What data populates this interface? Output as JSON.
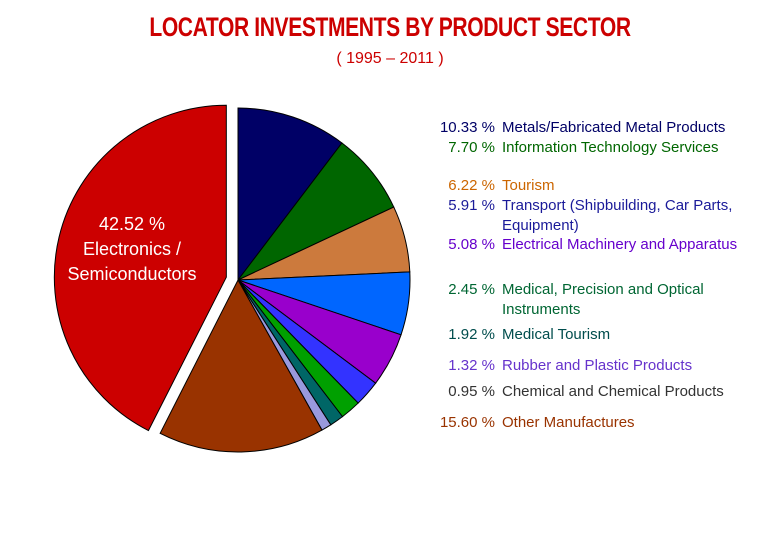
{
  "chart_data": {
    "type": "pie",
    "title": "LOCATOR INVESTMENTS BY PRODUCT SECTOR",
    "subtitle": "( 1995 – 2011 )",
    "categories": [
      "Metals/Fabricated Metal Products",
      "Information Technology Services",
      "Tourism",
      "Transport (Shipbuilding, Car Parts, Equipment)",
      "Electrical Machinery and Apparatus",
      "Medical, Precision and Optical Instruments",
      "Medical Tourism",
      "Rubber and Plastic Products",
      "Chemical and Chemical Products",
      "Other Manufactures",
      "Electronics / Semiconductors"
    ],
    "values": [
      10.33,
      7.7,
      6.22,
      5.91,
      5.08,
      2.45,
      1.92,
      1.32,
      0.95,
      15.6,
      42.52
    ],
    "value_labels": [
      "10.33 %",
      "7.70 %",
      "6.22 %",
      "5.91 %",
      "5.08 %",
      "2.45 %",
      "1.92 %",
      "1.32 %",
      "0.95 %",
      "15.60 %",
      "42.52 %"
    ],
    "colors": [
      "#000066",
      "#006600",
      "#cc7a3d",
      "#0066ff",
      "#9900cc",
      "#3333ff",
      "#00a000",
      "#006666",
      "#9999dd",
      "#993300",
      "#cc0000"
    ],
    "label_colors": [
      "#000066",
      "#006600",
      "#cc6600",
      "#1a1a99",
      "#6600cc",
      "#006633",
      "#004d4d",
      "#6633cc",
      "#333333",
      "#993300",
      "#ffffff"
    ]
  }
}
